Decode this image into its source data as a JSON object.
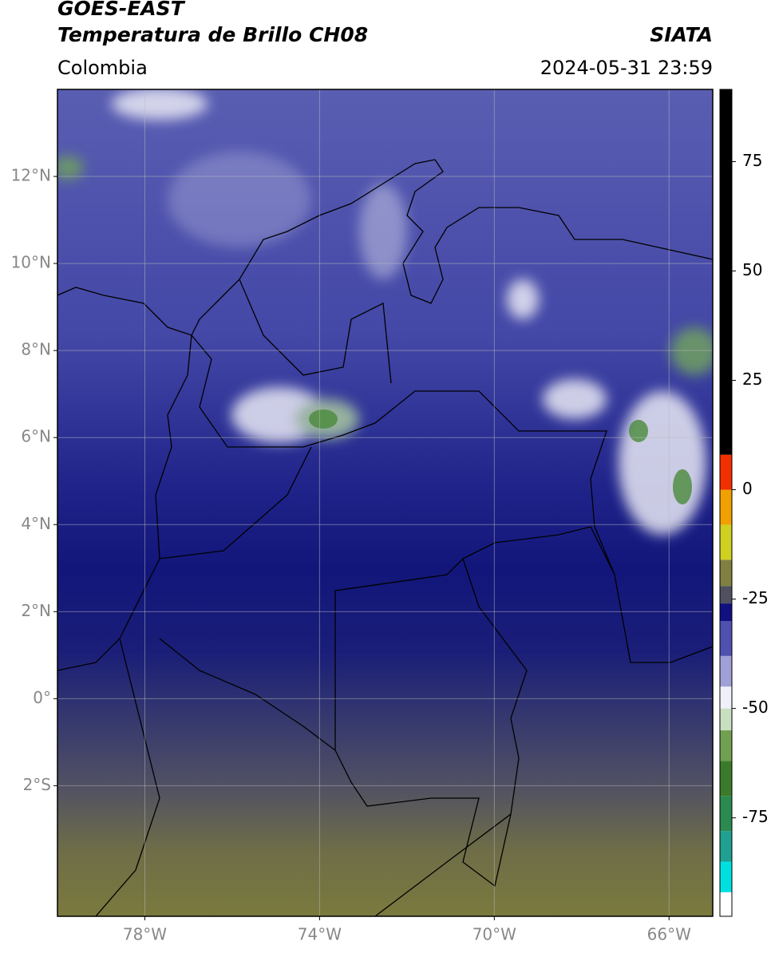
{
  "header": {
    "title": "GOES-EAST",
    "subtitle": "Temperatura de Brillo CH08",
    "source": "SIATA",
    "region": "Colombia",
    "datetime": "2024-05-31 23:59"
  },
  "map": {
    "lon_range": [
      -80,
      -65
    ],
    "lat_range": [
      -5,
      14
    ],
    "lon_ticks": [
      {
        "value": -78,
        "label": "78°W"
      },
      {
        "value": -74,
        "label": "74°W"
      },
      {
        "value": -70,
        "label": "70°W"
      },
      {
        "value": -66,
        "label": "66°W"
      }
    ],
    "lat_ticks": [
      {
        "value": 12,
        "label": "12°N"
      },
      {
        "value": 10,
        "label": "10°N"
      },
      {
        "value": 8,
        "label": "8°N"
      },
      {
        "value": 6,
        "label": "6°N"
      },
      {
        "value": 4,
        "label": "4°N"
      },
      {
        "value": 2,
        "label": "2°N"
      },
      {
        "value": 0,
        "label": "0°"
      },
      {
        "value": -2,
        "label": "2°S"
      }
    ]
  },
  "colorbar": {
    "ticks": [
      75,
      50,
      25,
      0,
      -25,
      -50,
      -75
    ],
    "levels": [
      -97.5,
      -92,
      -85,
      -78,
      -70,
      -62,
      -55,
      -50,
      -45,
      -38,
      -30,
      -26,
      -22,
      -16,
      -8,
      0,
      8,
      91.5
    ],
    "colors": [
      "#ffffff",
      "#00e0e0",
      "#20a090",
      "#2a8a50",
      "#3a7a2a",
      "#70a050",
      "#c8e0c0",
      "#f0f0f8",
      "#a0a0d8",
      "#5050b0",
      "#101080",
      "#505060",
      "#808040",
      "#d0d020",
      "#f0a000",
      "#f03000",
      "#000000"
    ]
  }
}
